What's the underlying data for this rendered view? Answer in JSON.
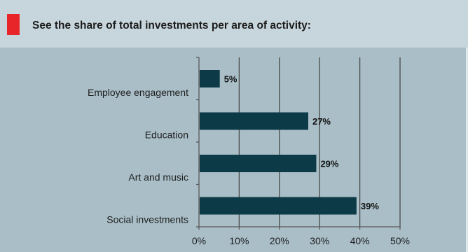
{
  "header": {
    "title": "See the share of total investments per area of activity:"
  },
  "colors": {
    "accent": "#e8262a",
    "bar": "#0d3a47",
    "background": "#a9bec7",
    "header_background": "#c7d6dc"
  },
  "chart_data": {
    "type": "bar",
    "orientation": "horizontal",
    "title": "See the share of total investments per area of activity:",
    "categories": [
      "Employee engagement",
      "Education",
      "Art and music",
      "Social investments"
    ],
    "values": [
      5,
      27,
      29,
      39
    ],
    "data_labels": [
      "5%",
      "27%",
      "29%",
      "39%"
    ],
    "xlim": [
      0,
      50
    ],
    "x_ticks": [
      0,
      10,
      20,
      30,
      40,
      50
    ],
    "x_tick_labels": [
      "0%",
      "10%",
      "20%",
      "30%",
      "40%",
      "50%"
    ],
    "grid": true,
    "legend": "none"
  }
}
